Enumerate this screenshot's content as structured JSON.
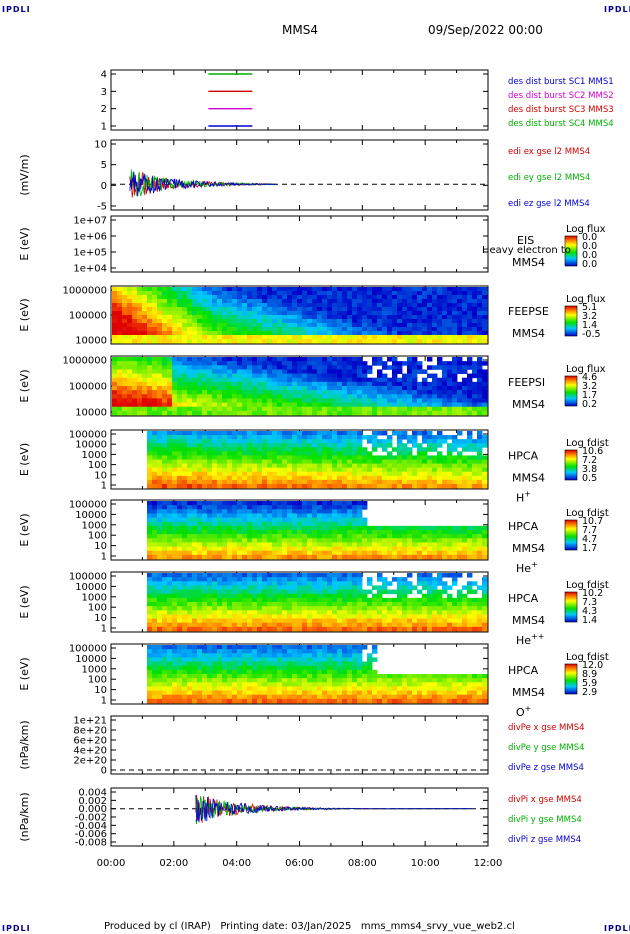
{
  "header": {
    "brand": "IPDLI",
    "mission": "MMS4",
    "datetime": "09/Sep/2022 00:00"
  },
  "footer": {
    "text": "Produced by cl (IRAP)   Printing date: 03/Jan/2025   mms_mms4_srvy_vue_web2.cl"
  },
  "colors": {
    "red": "#d00000",
    "green": "#00b000",
    "blue": "#0000d0",
    "magenta": "#d000d0"
  },
  "chart_data": {
    "type": "stacked-timeseries",
    "x_ticks": [
      "00:00",
      "02:00",
      "04:00",
      "06:00",
      "08:00",
      "10:00",
      "12:00"
    ],
    "x_hours": [
      0,
      2,
      4,
      6,
      8,
      10,
      12
    ],
    "x_range": [
      0,
      12
    ],
    "panels": [
      {
        "id": "burst",
        "kind": "flags",
        "yticks": [
          "4",
          "3",
          "2",
          "1"
        ],
        "legend": [
          {
            "text": "des dist burst SC1 MMS1",
            "color": "#0000d0"
          },
          {
            "text": "des dist burst SC2 MMS2",
            "color": "#d000d0"
          },
          {
            "text": "des dist burst SC3 MMS3",
            "color": "#d00000"
          },
          {
            "text": "des dist burst SC4 MMS4",
            "color": "#00b000"
          }
        ],
        "segments": [
          {
            "level": 4,
            "start": 3.1,
            "end": 4.5,
            "color": "#00b000"
          },
          {
            "level": 3,
            "start": 3.1,
            "end": 4.5,
            "color": "#d00000"
          },
          {
            "level": 2,
            "start": 3.1,
            "end": 4.5,
            "color": "#d000d0"
          },
          {
            "level": 1,
            "start": 3.1,
            "end": 4.5,
            "color": "#0000d0"
          }
        ]
      },
      {
        "id": "edi",
        "kind": "line",
        "ylabel": "(mV/m)",
        "yticks": [
          "10",
          "5",
          "0",
          "-5"
        ],
        "yvals": [
          10,
          5,
          0,
          -5
        ],
        "ylim": [
          -7,
          12
        ],
        "legend": [
          {
            "text": "edi ex gse l2 MMS4",
            "color": "#d00000"
          },
          {
            "text": "edi ey gse l2 MMS4",
            "color": "#00b000"
          },
          {
            "text": "edi ez gse l2 MMS4",
            "color": "#0000d0"
          }
        ]
      },
      {
        "id": "eis",
        "kind": "spectro-empty",
        "ylabel": "E (eV)",
        "yticks": [
          "1e+07",
          "1e+06",
          "1e+05",
          "1e+04"
        ],
        "name": "EIS",
        "sub": "MMS4",
        "overlay": "Heavy electron to",
        "cb_title": "Log flux",
        "cb_ticks": [
          "0.0",
          "0.0",
          "0.0",
          "0.0"
        ]
      },
      {
        "id": "feepse",
        "kind": "spectro",
        "ylabel": "E (eV)",
        "yticks": [
          "1000000",
          "100000",
          "10000"
        ],
        "name": "FEEPSE",
        "sub": "MMS4",
        "cb_title": "Log flux",
        "cb_ticks": [
          "5.1",
          "3.2",
          "1.4",
          "-0.5"
        ]
      },
      {
        "id": "feepsi",
        "kind": "spectro",
        "ylabel": "E (eV)",
        "yticks": [
          "1000000",
          "100000",
          "10000"
        ],
        "name": "FEEPSI",
        "sub": "MMS4",
        "cb_title": "Log flux",
        "cb_ticks": [
          "4.6",
          "3.2",
          "1.7",
          "0.2"
        ]
      },
      {
        "id": "hpca-h",
        "kind": "spectro",
        "ylabel": "E (eV)",
        "yticks": [
          "100000",
          "10000",
          "1000",
          "100",
          "10",
          "1"
        ],
        "name": "HPCA",
        "sub": "MMS4",
        "species": "H",
        "charge": "+",
        "cb_title": "Log fdist",
        "cb_ticks": [
          "10.6",
          "7.2",
          "3.8",
          "0.5"
        ]
      },
      {
        "id": "hpca-he",
        "kind": "spectro",
        "ylabel": "E (eV)",
        "yticks": [
          "100000",
          "10000",
          "1000",
          "100",
          "10",
          "1"
        ],
        "name": "HPCA",
        "sub": "MMS4",
        "species": "He",
        "charge": "+",
        "cb_title": "Log fdist",
        "cb_ticks": [
          "10.7",
          "7.7",
          "4.7",
          "1.7"
        ]
      },
      {
        "id": "hpca-hepp",
        "kind": "spectro",
        "ylabel": "E (eV)",
        "yticks": [
          "100000",
          "10000",
          "1000",
          "100",
          "10",
          "1"
        ],
        "name": "HPCA",
        "sub": "MMS4",
        "species": "He",
        "charge": "++",
        "cb_title": "Log fdist",
        "cb_ticks": [
          "10.2",
          "7.3",
          "4.3",
          "1.4"
        ]
      },
      {
        "id": "hpca-o",
        "kind": "spectro",
        "ylabel": "E (eV)",
        "yticks": [
          "100000",
          "10000",
          "1000",
          "100",
          "10",
          "1"
        ],
        "name": "HPCA",
        "sub": "MMS4",
        "species": "O",
        "charge": "+",
        "cb_title": "Log fdist",
        "cb_ticks": [
          "12.0",
          "8.9",
          "5.9",
          "2.9"
        ]
      },
      {
        "id": "divpe",
        "kind": "line-empty",
        "ylabel": "(nPa/km)",
        "yticks": [
          "1e+21",
          "8e+20",
          "6e+20",
          "4e+20",
          "2e+20",
          "0"
        ],
        "legend": [
          {
            "text": "divPe x gse MMS4",
            "color": "#d00000"
          },
          {
            "text": "divPe y gse MMS4",
            "color": "#00b000"
          },
          {
            "text": "divPe z gse MMS4",
            "color": "#0000d0"
          }
        ]
      },
      {
        "id": "divpi",
        "kind": "line",
        "ylabel": "(nPa/km)",
        "yticks": [
          "0.004",
          "0.002",
          "0.000",
          "-0.002",
          "-0.004",
          "-0.006",
          "-0.008"
        ],
        "yvals": [
          0.004,
          0.002,
          0,
          -0.002,
          -0.004,
          -0.006,
          -0.008
        ],
        "ylim": [
          -0.009,
          0.005
        ],
        "legend": [
          {
            "text": "divPi x gse MMS4",
            "color": "#d00000"
          },
          {
            "text": "divPi y gse MMS4",
            "color": "#00b000"
          },
          {
            "text": "divPi z gse MMS4",
            "color": "#0000d0"
          }
        ]
      }
    ]
  }
}
